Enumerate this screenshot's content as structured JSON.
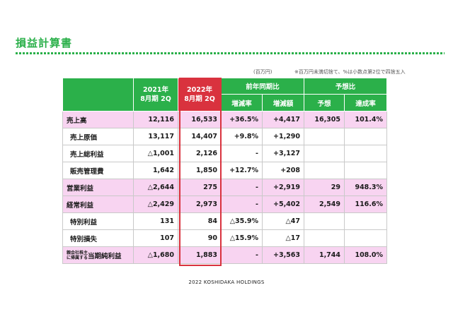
{
  "title": "損益計算書",
  "notes": {
    "unit": "(百万円)",
    "rounding": "※百万円未満切捨て、%は小数点第2位で四捨五入"
  },
  "headers": {
    "y2021_line1": "2021年",
    "y2021_line2": "8月期 2Q",
    "y2022_line1": "2022年",
    "y2022_line2": "8月期 2Q",
    "yoy_group": "前年同期比",
    "forecast_group": "予想比",
    "change_rate": "増減率",
    "change_amount": "増減額",
    "forecast": "予想",
    "achievement": "達成率"
  },
  "rows": [
    {
      "label": "売上高",
      "y2021": "12,116",
      "y2022": "16,533",
      "rate": "+36.5%",
      "amount": "+4,417",
      "forecast": "16,305",
      "achievement": "101.4%"
    },
    {
      "label": "売上原価",
      "y2021": "13,117",
      "y2022": "14,407",
      "rate": "+9.8%",
      "amount": "+1,290",
      "forecast": "",
      "achievement": ""
    },
    {
      "label": "売上総利益",
      "y2021": "△1,001",
      "y2022": "2,126",
      "rate": "-",
      "amount": "+3,127",
      "forecast": "",
      "achievement": ""
    },
    {
      "label": "販売管理費",
      "y2021": "1,642",
      "y2022": "1,850",
      "rate": "+12.7%",
      "amount": "+208",
      "forecast": "",
      "achievement": ""
    },
    {
      "label": "営業利益",
      "y2021": "△2,644",
      "y2022": "275",
      "rate": "-",
      "amount": "+2,919",
      "forecast": "29",
      "achievement": "948.3%"
    },
    {
      "label": "経常利益",
      "y2021": "△2,429",
      "y2022": "2,973",
      "rate": "-",
      "amount": "+5,402",
      "forecast": "2,549",
      "achievement": "116.6%"
    },
    {
      "label": "特別利益",
      "y2021": "131",
      "y2022": "84",
      "rate": "△35.9%",
      "amount": "△47",
      "forecast": "",
      "achievement": ""
    },
    {
      "label": "特別損失",
      "y2021": "107",
      "y2022": "90",
      "rate": "△15.9%",
      "amount": "△17",
      "forecast": "",
      "achievement": ""
    },
    {
      "label_small_1": "親会社株主",
      "label_small_2": "に帰属する",
      "label_big": "当期純利益",
      "y2021": "△1,680",
      "y2022": "1,883",
      "rate": "-",
      "amount": "+3,563",
      "forecast": "1,744",
      "achievement": "108.0%"
    }
  ],
  "footer": "2022 KOSHIDAKA HOLDINGS",
  "colors": {
    "green": "#2bb04a",
    "red": "#d9323e",
    "pink": "#f8d4f1"
  }
}
